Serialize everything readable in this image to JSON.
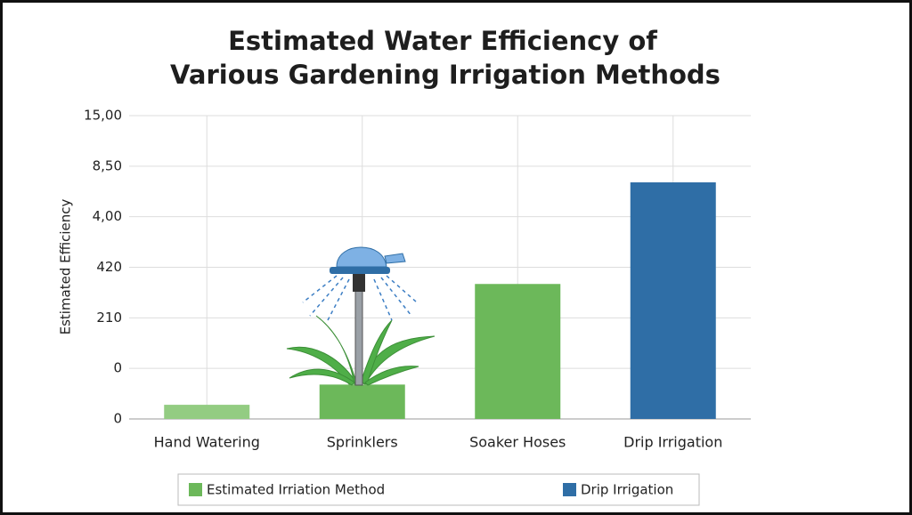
{
  "chart_data": {
    "type": "bar",
    "title": [
      "Estimated Water Efficiency of",
      "Various Gardening Irrigation Methods"
    ],
    "ylabel": "Estimated Efficiency",
    "categories": [
      "Hand Watering",
      "Sprinklers",
      "Soaker Hoses",
      "Drip Irrigation"
    ],
    "values": [
      0.28,
      0.68,
      2.67,
      4.68
    ],
    "colors": [
      "#93cc82",
      "#6cb85a",
      "#6cb85a",
      "#2f6ea6"
    ],
    "ylim": [
      0,
      6
    ],
    "yticks": [
      {
        "value": 0,
        "label": "0"
      },
      {
        "value": 1,
        "label": "0"
      },
      {
        "value": 2,
        "label": "210"
      },
      {
        "value": 3,
        "label": "420"
      },
      {
        "value": 4,
        "label": "4,00"
      },
      {
        "value": 5,
        "label": "8,50"
      },
      {
        "value": 6,
        "label": "15,00"
      }
    ],
    "grid": true,
    "legend": {
      "position": "bottom",
      "entries": [
        {
          "name": "Estimated Irriation Method",
          "color": "#6cb85a"
        },
        {
          "name": "Drip Irrigation",
          "color": "#2f6ea6"
        }
      ]
    }
  }
}
